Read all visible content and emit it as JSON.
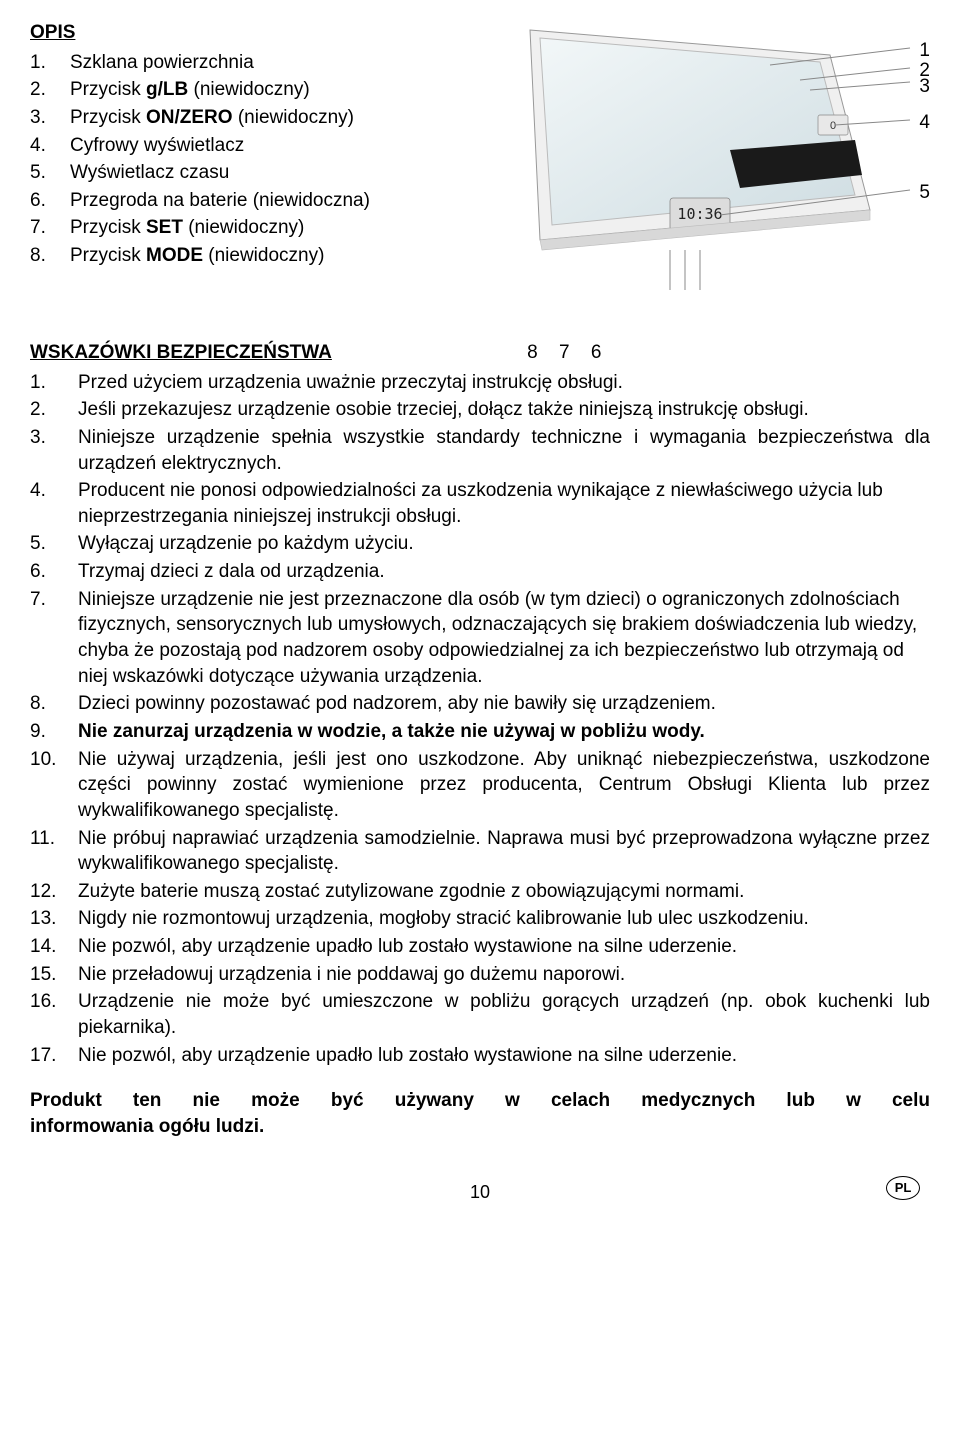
{
  "opis": {
    "title": "OPIS",
    "items": [
      {
        "num": "1.",
        "text": "Szklana powierzchnia"
      },
      {
        "num": "2.",
        "text": "Przycisk <b>g/LB</b> (niewidoczny)"
      },
      {
        "num": "3.",
        "text": "Przycisk <b>ON/ZERO</b> (niewidoczny)"
      },
      {
        "num": "4.",
        "text": "Cyfrowy wyświetlacz"
      },
      {
        "num": "5.",
        "text": "Wyświetlacz czasu"
      },
      {
        "num": "6.",
        "text": "Przegroda na baterie (niewidoczna)"
      },
      {
        "num": "7.",
        "text": "Przycisk <b>SET</b> (niewidoczny)"
      },
      {
        "num": "8.",
        "text": "Przycisk <b>MODE</b> (niewidoczny)"
      }
    ]
  },
  "diagram": {
    "callouts_right": [
      "1",
      "2",
      "3",
      "4",
      "5"
    ],
    "callouts_bottom": [
      "8",
      "7",
      "6"
    ],
    "time_display": "10:36",
    "digit_display": "0",
    "colors": {
      "glass_light": "#e8f0f2",
      "glass_dark": "#d0dce0",
      "frame": "#c8c8c8",
      "display_bar": "#1a1a1a",
      "line": "#888888"
    }
  },
  "safety": {
    "title": "WSKAZÓWKI BEZPIECZEŃSTWA",
    "items": [
      {
        "num": "1.",
        "text": "Przed użyciem urządzenia uważnie przeczytaj instrukcję obsługi.",
        "justify": false
      },
      {
        "num": "2.",
        "text": "Jeśli przekazujesz urządzenie osobie trzeciej, dołącz także niniejszą instrukcję obsługi.",
        "justify": true
      },
      {
        "num": "3.",
        "text": "Niniejsze urządzenie spełnia wszystkie standardy techniczne i wymagania bezpieczeństwa dla urządzeń elektrycznych.",
        "justify": true
      },
      {
        "num": "4.",
        "text": "Producent nie ponosi odpowiedzialności za uszkodzenia wynikające z niewłaściwego użycia lub nieprzestrzegania niniejszej instrukcji obsługi.",
        "justify": false
      },
      {
        "num": "5.",
        "text": "Wyłączaj urządzenie po każdym użyciu.",
        "justify": false
      },
      {
        "num": "6.",
        "text": "Trzymaj dzieci z dala od urządzenia.",
        "justify": false
      },
      {
        "num": "7.",
        "text": "Niniejsze urządzenie nie jest przeznaczone dla osób (w tym dzieci) o ograniczonych zdolnościach fizycznych, sensorycznych lub umysłowych, odznaczających się brakiem doświadczenia lub wiedzy, chyba że pozostają pod nadzorem osoby odpowiedzialnej za ich bezpieczeństwo lub otrzymają od niej wskazówki dotyczące używania urządzenia.",
        "justify": false
      },
      {
        "num": "8.",
        "text": "Dzieci powinny pozostawać pod nadzorem, aby nie bawiły się urządzeniem.",
        "justify": false
      },
      {
        "num": "9.",
        "text": "<b>Nie zanurzaj urządzenia w wodzie, a także nie używaj w pobliżu wody.</b>",
        "justify": false
      },
      {
        "num": "10.",
        "text": "Nie używaj urządzenia, jeśli jest ono uszkodzone. Aby uniknąć niebezpieczeństwa, uszkodzone części powinny zostać wymienione przez producenta, Centrum Obsługi Klienta lub przez wykwalifikowanego specjalistę.",
        "justify": true
      },
      {
        "num": "11.",
        "text": "Nie próbuj naprawiać urządzenia samodzielnie. Naprawa musi być przeprowadzona wyłączne przez wykwalifikowanego specjalistę.",
        "justify": true
      },
      {
        "num": "12.",
        "text": "Zużyte baterie muszą zostać zutylizowane zgodnie z obowiązującymi normami.",
        "justify": false
      },
      {
        "num": "13.",
        "text": "Nigdy nie rozmontowuj urządzenia, mogłoby stracić kalibrowanie lub ulec uszkodzeniu.",
        "justify": true
      },
      {
        "num": "14.",
        "text": "Nie pozwól, aby urządzenie upadło lub zostało wystawione na silne uderzenie.",
        "justify": false
      },
      {
        "num": "15.",
        "text": "Nie przeładowuj urządzenia i nie poddawaj go dużemu naporowi.",
        "justify": false
      },
      {
        "num": "16.",
        "text": "Urządzenie nie może być umieszczone w pobliżu gorących urządzeń (np. obok kuchenki lub piekarnika).",
        "justify": true
      },
      {
        "num": "17.",
        "text": "Nie pozwól, aby urządzenie upadło lub zostało wystawione na silne uderzenie.",
        "justify": false
      }
    ]
  },
  "footer_note": {
    "line1": "Produkt ten nie może być używany w celach medycznych lub w celu",
    "line2": "informowania ogółu ludzi."
  },
  "page_number": "10",
  "lang_code": "PL"
}
